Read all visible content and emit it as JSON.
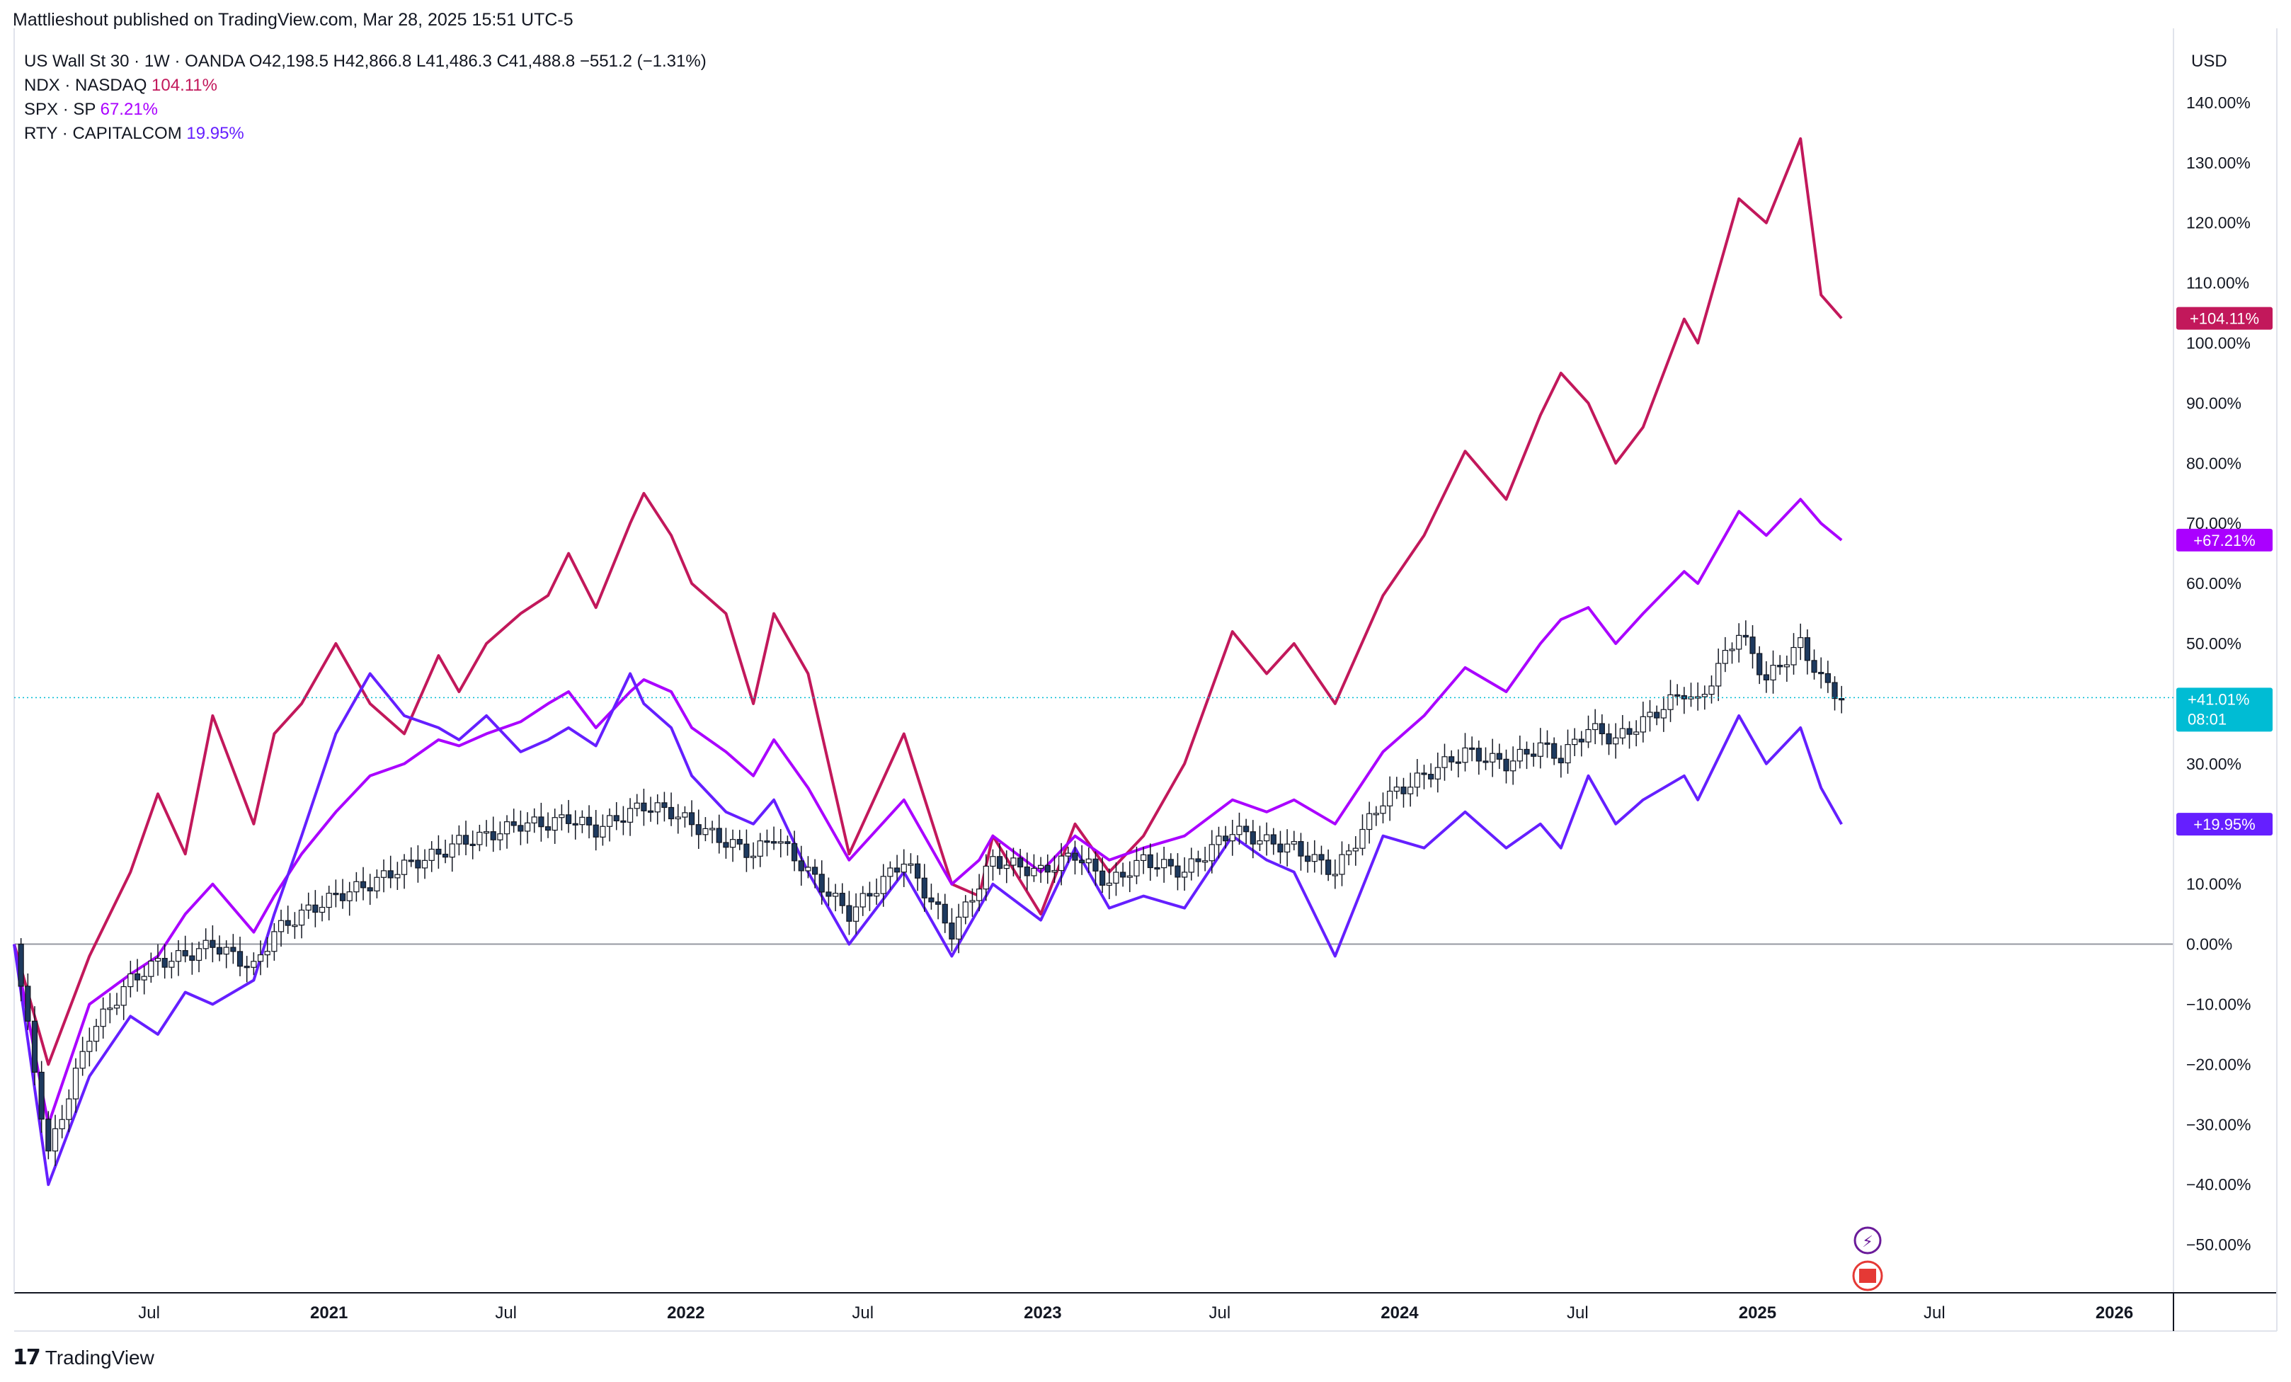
{
  "header": {
    "published": "Mattlieshout published on TradingView.com, Mar 28, 2025 15:51 UTC-5"
  },
  "legend": {
    "main": {
      "symbol": "US Wall St 30 · 1W · OANDA",
      "o_label": "O",
      "o": "42,198.5",
      "h_label": "H",
      "h": "42,866.8",
      "l_label": "L",
      "l": "41,486.3",
      "c_label": "C",
      "c": "41,488.8",
      "chg": "−551.2 (−1.31%)"
    },
    "rows": [
      {
        "symbol": "NDX · NASDAQ",
        "value": "104.11%",
        "color": "#c2185b"
      },
      {
        "symbol": "SPX · SP",
        "value": "67.21%",
        "color": "#aa00ff"
      },
      {
        "symbol": "RTY · CAPITALCOM",
        "value": "19.95%",
        "color": "#651fff"
      }
    ]
  },
  "currency": "USD",
  "brand": "TradingView",
  "colors": {
    "ndx": "#c2185b",
    "spx": "#aa00ff",
    "rty": "#651fff",
    "dji": "#00bcd4",
    "candle_up": "#1e3a5f",
    "grid": "#e0e3eb"
  },
  "chart_data": {
    "type": "line",
    "y_unit": "% change",
    "ylim": [
      -58,
      150
    ],
    "y_ticks": [
      "140.00%",
      "130.00%",
      "120.00%",
      "110.00%",
      "100.00%",
      "90.00%",
      "80.00%",
      "70.00%",
      "60.00%",
      "50.00%",
      "40.00%",
      "30.00%",
      "20.00%",
      "10.00%",
      "0.00%",
      "−10.00%",
      "−20.00%",
      "−30.00%",
      "−40.00%",
      "−50.00%"
    ],
    "y_tick_values": [
      140,
      130,
      120,
      110,
      100,
      90,
      80,
      70,
      60,
      50,
      40,
      30,
      20,
      10,
      0,
      -10,
      -20,
      -30,
      -40,
      -50
    ],
    "x_range": [
      "2020-02-14",
      "2026-03-01"
    ],
    "x_ticks": [
      {
        "label": "Jul",
        "date": "2020-07-01",
        "bold": false
      },
      {
        "label": "2021",
        "date": "2021-01-01",
        "bold": true
      },
      {
        "label": "Jul",
        "date": "2021-07-01",
        "bold": false
      },
      {
        "label": "2022",
        "date": "2022-01-01",
        "bold": true
      },
      {
        "label": "Jul",
        "date": "2022-07-01",
        "bold": false
      },
      {
        "label": "2023",
        "date": "2023-01-01",
        "bold": true
      },
      {
        "label": "Jul",
        "date": "2023-07-01",
        "bold": false
      },
      {
        "label": "2024",
        "date": "2024-01-01",
        "bold": true
      },
      {
        "label": "Jul",
        "date": "2024-07-01",
        "bold": false
      },
      {
        "label": "2025",
        "date": "2025-01-01",
        "bold": true
      },
      {
        "label": "Jul",
        "date": "2025-07-01",
        "bold": false
      },
      {
        "label": "2026",
        "date": "2026-01-01",
        "bold": true
      }
    ],
    "series": [
      {
        "name": "NDX · NASDAQ",
        "color": "#c2185b",
        "last_label": "+104.11%",
        "points": [
          [
            "2020-02-14",
            0
          ],
          [
            "2020-03-20",
            -20
          ],
          [
            "2020-05-01",
            -2
          ],
          [
            "2020-06-12",
            12
          ],
          [
            "2020-07-10",
            25
          ],
          [
            "2020-08-07",
            15
          ],
          [
            "2020-09-04",
            38
          ],
          [
            "2020-10-16",
            20
          ],
          [
            "2020-11-06",
            35
          ],
          [
            "2020-12-04",
            40
          ],
          [
            "2021-01-08",
            50
          ],
          [
            "2021-02-12",
            40
          ],
          [
            "2021-03-19",
            35
          ],
          [
            "2021-04-23",
            48
          ],
          [
            "2021-05-14",
            42
          ],
          [
            "2021-06-11",
            50
          ],
          [
            "2021-07-16",
            55
          ],
          [
            "2021-08-13",
            58
          ],
          [
            "2021-09-03",
            65
          ],
          [
            "2021-10-01",
            56
          ],
          [
            "2021-11-05",
            70
          ],
          [
            "2021-11-19",
            75
          ],
          [
            "2021-12-17",
            68
          ],
          [
            "2022-01-07",
            60
          ],
          [
            "2022-02-11",
            55
          ],
          [
            "2022-03-11",
            40
          ],
          [
            "2022-04-01",
            55
          ],
          [
            "2022-05-06",
            45
          ],
          [
            "2022-06-17",
            15
          ],
          [
            "2022-08-12",
            35
          ],
          [
            "2022-09-30",
            10
          ],
          [
            "2022-10-28",
            8
          ],
          [
            "2022-11-11",
            18
          ],
          [
            "2022-12-30",
            5
          ],
          [
            "2023-02-03",
            20
          ],
          [
            "2023-03-10",
            12
          ],
          [
            "2023-04-14",
            18
          ],
          [
            "2023-05-26",
            30
          ],
          [
            "2023-07-14",
            52
          ],
          [
            "2023-08-18",
            45
          ],
          [
            "2023-09-15",
            50
          ],
          [
            "2023-10-27",
            40
          ],
          [
            "2023-12-15",
            58
          ],
          [
            "2024-01-26",
            68
          ],
          [
            "2024-03-08",
            82
          ],
          [
            "2024-04-19",
            74
          ],
          [
            "2024-05-24",
            88
          ],
          [
            "2024-06-14",
            95
          ],
          [
            "2024-07-12",
            90
          ],
          [
            "2024-08-09",
            80
          ],
          [
            "2024-09-06",
            86
          ],
          [
            "2024-10-18",
            104
          ],
          [
            "2024-11-01",
            100
          ],
          [
            "2024-12-13",
            124
          ],
          [
            "2025-01-10",
            120
          ],
          [
            "2025-02-14",
            134
          ],
          [
            "2025-03-07",
            108
          ],
          [
            "2025-03-28",
            104.11
          ]
        ]
      },
      {
        "name": "SPX · SP",
        "color": "#aa00ff",
        "last_label": "+67.21%",
        "points": [
          [
            "2020-02-14",
            0
          ],
          [
            "2020-03-20",
            -30
          ],
          [
            "2020-05-01",
            -10
          ],
          [
            "2020-06-12",
            -5
          ],
          [
            "2020-07-10",
            -2
          ],
          [
            "2020-08-07",
            5
          ],
          [
            "2020-09-04",
            10
          ],
          [
            "2020-10-16",
            2
          ],
          [
            "2020-11-06",
            8
          ],
          [
            "2020-12-04",
            15
          ],
          [
            "2021-01-08",
            22
          ],
          [
            "2021-02-12",
            28
          ],
          [
            "2021-03-19",
            30
          ],
          [
            "2021-04-23",
            34
          ],
          [
            "2021-05-14",
            33
          ],
          [
            "2021-06-11",
            35
          ],
          [
            "2021-07-16",
            37
          ],
          [
            "2021-08-13",
            40
          ],
          [
            "2021-09-03",
            42
          ],
          [
            "2021-10-01",
            36
          ],
          [
            "2021-11-05",
            42
          ],
          [
            "2021-11-19",
            44
          ],
          [
            "2021-12-17",
            42
          ],
          [
            "2022-01-07",
            36
          ],
          [
            "2022-02-11",
            32
          ],
          [
            "2022-03-11",
            28
          ],
          [
            "2022-04-01",
            34
          ],
          [
            "2022-05-06",
            26
          ],
          [
            "2022-06-17",
            14
          ],
          [
            "2022-08-12",
            24
          ],
          [
            "2022-09-30",
            10
          ],
          [
            "2022-10-28",
            14
          ],
          [
            "2022-11-11",
            18
          ],
          [
            "2022-12-30",
            12
          ],
          [
            "2023-02-03",
            18
          ],
          [
            "2023-03-10",
            14
          ],
          [
            "2023-04-14",
            16
          ],
          [
            "2023-05-26",
            18
          ],
          [
            "2023-07-14",
            24
          ],
          [
            "2023-08-18",
            22
          ],
          [
            "2023-09-15",
            24
          ],
          [
            "2023-10-27",
            20
          ],
          [
            "2023-12-15",
            32
          ],
          [
            "2024-01-26",
            38
          ],
          [
            "2024-03-08",
            46
          ],
          [
            "2024-04-19",
            42
          ],
          [
            "2024-05-24",
            50
          ],
          [
            "2024-06-14",
            54
          ],
          [
            "2024-07-12",
            56
          ],
          [
            "2024-08-09",
            50
          ],
          [
            "2024-09-06",
            55
          ],
          [
            "2024-10-18",
            62
          ],
          [
            "2024-11-01",
            60
          ],
          [
            "2024-12-13",
            72
          ],
          [
            "2025-01-10",
            68
          ],
          [
            "2025-02-14",
            74
          ],
          [
            "2025-03-07",
            70
          ],
          [
            "2025-03-28",
            67.21
          ]
        ]
      },
      {
        "name": "RTY · CAPITALCOM",
        "color": "#651fff",
        "last_label": "+19.95%",
        "points": [
          [
            "2020-02-14",
            0
          ],
          [
            "2020-03-20",
            -40
          ],
          [
            "2020-05-01",
            -22
          ],
          [
            "2020-06-12",
            -12
          ],
          [
            "2020-07-10",
            -15
          ],
          [
            "2020-08-07",
            -8
          ],
          [
            "2020-09-04",
            -10
          ],
          [
            "2020-10-16",
            -6
          ],
          [
            "2020-11-06",
            5
          ],
          [
            "2020-12-04",
            18
          ],
          [
            "2021-01-08",
            35
          ],
          [
            "2021-02-12",
            45
          ],
          [
            "2021-03-19",
            38
          ],
          [
            "2021-04-23",
            36
          ],
          [
            "2021-05-14",
            34
          ],
          [
            "2021-06-11",
            38
          ],
          [
            "2021-07-16",
            32
          ],
          [
            "2021-08-13",
            34
          ],
          [
            "2021-09-03",
            36
          ],
          [
            "2021-10-01",
            33
          ],
          [
            "2021-11-05",
            45
          ],
          [
            "2021-11-19",
            40
          ],
          [
            "2021-12-17",
            36
          ],
          [
            "2022-01-07",
            28
          ],
          [
            "2022-02-11",
            22
          ],
          [
            "2022-03-11",
            20
          ],
          [
            "2022-04-01",
            24
          ],
          [
            "2022-05-06",
            12
          ],
          [
            "2022-06-17",
            0
          ],
          [
            "2022-08-12",
            12
          ],
          [
            "2022-09-30",
            -2
          ],
          [
            "2022-10-28",
            6
          ],
          [
            "2022-11-11",
            10
          ],
          [
            "2022-12-30",
            4
          ],
          [
            "2023-02-03",
            16
          ],
          [
            "2023-03-10",
            6
          ],
          [
            "2023-04-14",
            8
          ],
          [
            "2023-05-26",
            6
          ],
          [
            "2023-07-14",
            18
          ],
          [
            "2023-08-18",
            14
          ],
          [
            "2023-09-15",
            12
          ],
          [
            "2023-10-27",
            -2
          ],
          [
            "2023-12-15",
            18
          ],
          [
            "2024-01-26",
            16
          ],
          [
            "2024-03-08",
            22
          ],
          [
            "2024-04-19",
            16
          ],
          [
            "2024-05-24",
            20
          ],
          [
            "2024-06-14",
            16
          ],
          [
            "2024-07-12",
            28
          ],
          [
            "2024-08-09",
            20
          ],
          [
            "2024-09-06",
            24
          ],
          [
            "2024-10-18",
            28
          ],
          [
            "2024-11-01",
            24
          ],
          [
            "2024-12-13",
            38
          ],
          [
            "2025-01-10",
            30
          ],
          [
            "2025-02-14",
            36
          ],
          [
            "2025-03-07",
            26
          ],
          [
            "2025-03-28",
            19.95
          ]
        ]
      },
      {
        "name": "US Wall St 30 · 1W · OANDA",
        "color": "#131722",
        "type": "candlestick",
        "last_label": "+41.01%",
        "last_time": "08:01",
        "points": [
          [
            "2020-02-14",
            0
          ],
          [
            "2020-03-20",
            -35
          ],
          [
            "2020-05-01",
            -15
          ],
          [
            "2020-06-12",
            -6
          ],
          [
            "2020-07-10",
            -3
          ],
          [
            "2020-08-07",
            -2
          ],
          [
            "2020-09-04",
            0
          ],
          [
            "2020-10-16",
            -4
          ],
          [
            "2020-11-06",
            2
          ],
          [
            "2020-12-04",
            5
          ],
          [
            "2021-01-08",
            8
          ],
          [
            "2021-02-12",
            10
          ],
          [
            "2021-03-19",
            13
          ],
          [
            "2021-04-23",
            15
          ],
          [
            "2021-05-14",
            17
          ],
          [
            "2021-06-11",
            18
          ],
          [
            "2021-07-16",
            20
          ],
          [
            "2021-08-13",
            20
          ],
          [
            "2021-09-03",
            21
          ],
          [
            "2021-10-01",
            19
          ],
          [
            "2021-11-05",
            22
          ],
          [
            "2021-11-19",
            23
          ],
          [
            "2021-12-17",
            22
          ],
          [
            "2022-01-07",
            20
          ],
          [
            "2022-02-11",
            17
          ],
          [
            "2022-03-11",
            15
          ],
          [
            "2022-04-01",
            18
          ],
          [
            "2022-05-06",
            12
          ],
          [
            "2022-06-17",
            5
          ],
          [
            "2022-08-12",
            14
          ],
          [
            "2022-09-30",
            2
          ],
          [
            "2022-10-28",
            10
          ],
          [
            "2022-11-11",
            14
          ],
          [
            "2022-12-30",
            12
          ],
          [
            "2023-02-03",
            15
          ],
          [
            "2023-03-10",
            10
          ],
          [
            "2023-04-14",
            14
          ],
          [
            "2023-05-26",
            12
          ],
          [
            "2023-07-14",
            19
          ],
          [
            "2023-08-18",
            17
          ],
          [
            "2023-09-15",
            16
          ],
          [
            "2023-10-27",
            12
          ],
          [
            "2023-12-15",
            24
          ],
          [
            "2024-01-26",
            28
          ],
          [
            "2024-03-08",
            32
          ],
          [
            "2024-04-19",
            30
          ],
          [
            "2024-05-24",
            33
          ],
          [
            "2024-06-14",
            31
          ],
          [
            "2024-07-12",
            36
          ],
          [
            "2024-08-09",
            34
          ],
          [
            "2024-09-06",
            37
          ],
          [
            "2024-10-18",
            42
          ],
          [
            "2024-11-01",
            40
          ],
          [
            "2024-12-13",
            52
          ],
          [
            "2025-01-10",
            44
          ],
          [
            "2025-02-14",
            50
          ],
          [
            "2025-03-07",
            44
          ],
          [
            "2025-03-28",
            41.01
          ]
        ]
      }
    ]
  }
}
